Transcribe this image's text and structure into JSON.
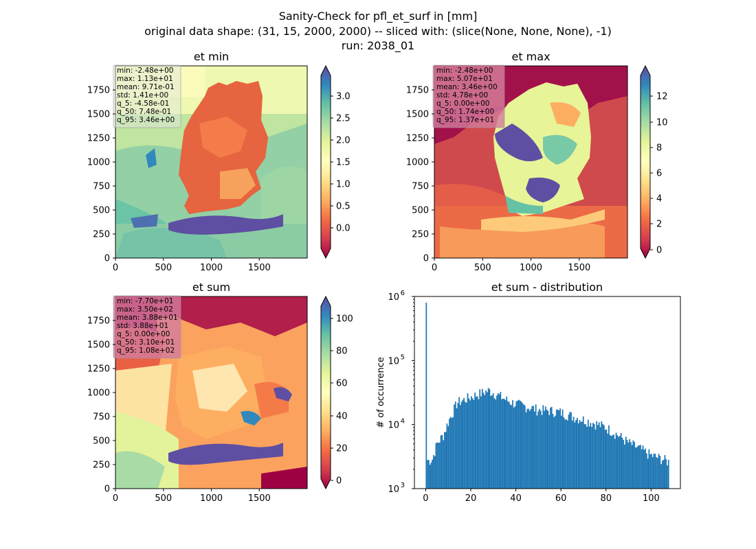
{
  "suptitle": {
    "line1": "Sanity-Check for pfl_et_surf in [mm]",
    "line2": "original data shape: (31, 15, 2000, 2000) -- sliced with: (slice(None, None, None), -1)",
    "line3": "run: 2038_01"
  },
  "colors": {
    "stats_box_light": "#dfe6dc",
    "stats_box_pink": "#d37c9e",
    "hist_bar": "#1f77b4"
  },
  "chart_data": [
    {
      "type": "heatmap",
      "title": "et min",
      "colormap": "Spectral",
      "xlim": [
        0,
        2000
      ],
      "ylim": [
        0,
        2000
      ],
      "xticks": [
        "0",
        "500",
        "1000",
        "1500"
      ],
      "yticks": [
        "0",
        "250",
        "500",
        "750",
        "1000",
        "1250",
        "1500",
        "1750"
      ],
      "colorbar": {
        "min": -0.45,
        "max": 3.46,
        "ticks": [
          "0.0",
          "0.5",
          "1.0",
          "1.5",
          "2.0",
          "2.5",
          "3.0"
        ],
        "extend": "both"
      },
      "stats": [
        "min: -2.48e+00",
        "max: 1.13e+01",
        "mean: 9.71e-01",
        "std: 1.41e+00",
        "q_5: -4.58e-01",
        "q_50: 7.48e-01",
        "q_95: 3.46e+00"
      ]
    },
    {
      "type": "heatmap",
      "title": "et max",
      "colormap": "Spectral",
      "xlim": [
        0,
        2000
      ],
      "ylim": [
        0,
        2000
      ],
      "xticks": [
        "0",
        "500",
        "1000",
        "1500"
      ],
      "yticks": [
        "0",
        "250",
        "500",
        "750",
        "1000",
        "1250",
        "1500",
        "1750"
      ],
      "colorbar": {
        "min": 0,
        "max": 13.7,
        "ticks": [
          "0",
          "2",
          "4",
          "6",
          "8",
          "10",
          "12"
        ],
        "extend": "both"
      },
      "stats": [
        "min: -2.48e+00",
        "max: 5.07e+01",
        "mean: 3.46e+00",
        "std: 4.78e+00",
        "q_5: 0.00e+00",
        "q_50: 1.74e+00",
        "q_95: 1.37e+01"
      ]
    },
    {
      "type": "heatmap",
      "title": "et sum",
      "colormap": "Spectral",
      "xlim": [
        0,
        2000
      ],
      "ylim": [
        0,
        2000
      ],
      "xticks": [
        "0",
        "500",
        "1000",
        "1500"
      ],
      "yticks": [
        "0",
        "250",
        "500",
        "750",
        "1000",
        "1250",
        "1500",
        "1750"
      ],
      "colorbar": {
        "min": -2,
        "max": 108,
        "ticks": [
          "0",
          "20",
          "40",
          "60",
          "80",
          "100"
        ],
        "extend": "both"
      },
      "stats": [
        "min: -7.70e+01",
        "max: 3.50e+02",
        "mean: 3.88e+01",
        "std: 3.88e+01",
        "q_5: 0.00e+00",
        "q_50: 3.10e+01",
        "q_95: 1.08e+02"
      ]
    },
    {
      "type": "bar",
      "title": "et sum - distribution",
      "ylabel": "# of occurrence",
      "yscale": "log",
      "xlim": [
        -5,
        113
      ],
      "ylim": [
        1000,
        1000000
      ],
      "xticks": [
        0,
        20,
        40,
        60,
        80,
        100
      ],
      "xtick_labels": [
        "0",
        "20",
        "40",
        "60",
        "80",
        "100"
      ],
      "yticks": [
        1000,
        10000,
        100000,
        1000000
      ],
      "ytick_labels": [
        [
          "10",
          "3"
        ],
        [
          "10",
          "4"
        ],
        [
          "10",
          "5"
        ],
        [
          "10",
          "6"
        ]
      ],
      "bin_start": 0,
      "bin_width": 0.54,
      "bin_note": "histogram of et sum from 0 to about 108 in 200 bins",
      "bin_count": 200,
      "spike": 800000,
      "anchors": [
        [
          0.5,
          3000
        ],
        [
          1,
          2700
        ],
        [
          3,
          2900
        ],
        [
          5,
          5000
        ],
        [
          8,
          7000
        ],
        [
          10,
          11000
        ],
        [
          14,
          22000
        ],
        [
          20,
          27000
        ],
        [
          28,
          34000
        ],
        [
          32,
          29000
        ],
        [
          36,
          24000
        ],
        [
          40,
          21000
        ],
        [
          45,
          19000
        ],
        [
          50,
          17000
        ],
        [
          55,
          16500
        ],
        [
          60,
          15500
        ],
        [
          65,
          13500
        ],
        [
          70,
          12000
        ],
        [
          75,
          10500
        ],
        [
          80,
          9000
        ],
        [
          85,
          7000
        ],
        [
          90,
          5200
        ],
        [
          95,
          4200
        ],
        [
          100,
          3300
        ],
        [
          105,
          2900
        ],
        [
          108,
          2600
        ]
      ]
    }
  ]
}
